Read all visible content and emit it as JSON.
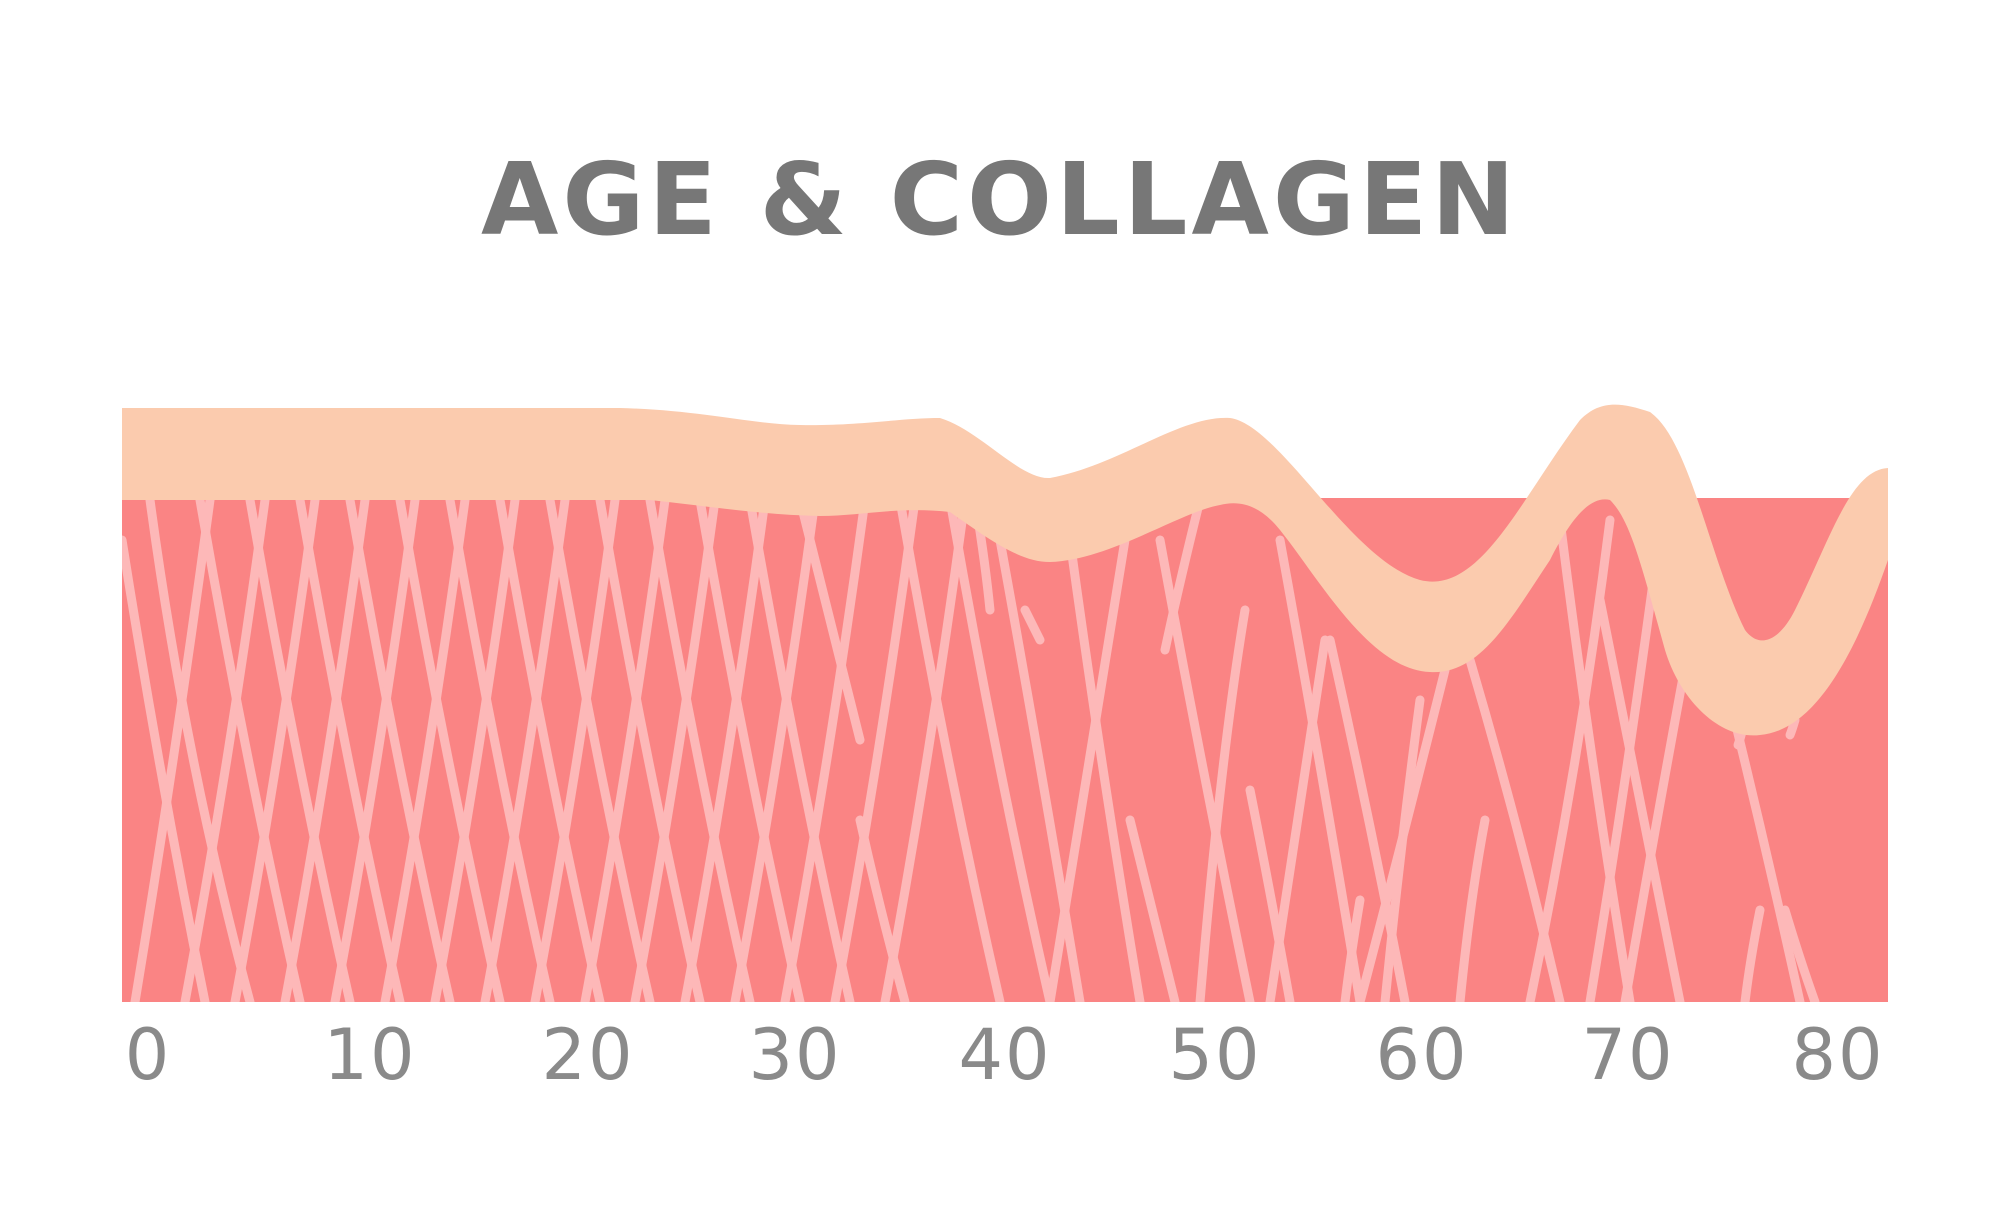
{
  "title": "AGE & COLLAGEN",
  "axis": {
    "ticks": [
      "0",
      "10",
      "20",
      "30",
      "40",
      "50",
      "60",
      "70",
      "80"
    ]
  },
  "colors": {
    "dermis": "#fa8484",
    "fiber": "#fdb8b8",
    "epidermis": "#fbcbae",
    "title": "#777777",
    "ticks": "#8a8a8a"
  }
}
